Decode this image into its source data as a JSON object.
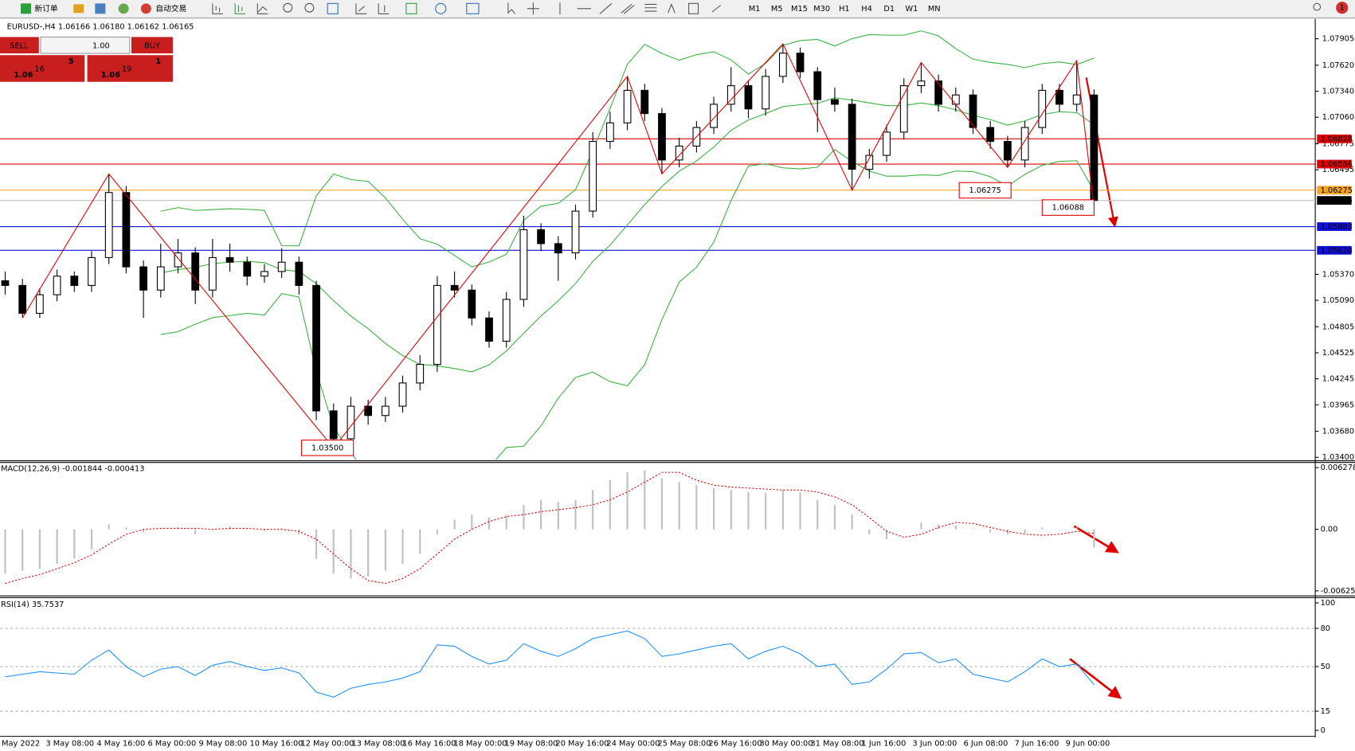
{
  "toolbar": {
    "new_order": "新订单",
    "auto_trading": "自动交易",
    "timeframes": [
      "M1",
      "M5",
      "M15",
      "M30",
      "H1",
      "H4",
      "D1",
      "W1",
      "MN"
    ],
    "notification_count": "1"
  },
  "header": "EURUSD-,H4  1.06166 1.06180 1.06162 1.06165",
  "trade_panel": {
    "sell": "SELL",
    "buy": "BUY",
    "lots": "1.00",
    "sell_price": {
      "prefix": "1.06",
      "big": "16",
      "small": "5"
    },
    "buy_price": {
      "prefix": "1.06",
      "big": "19",
      "small": "1"
    }
  },
  "price_axis": {
    "ylim": [
      1.034,
      1.07905
    ],
    "ticks": [
      {
        "value": 1.07905,
        "label": "1.07905"
      },
      {
        "value": 1.0762,
        "label": "1.07620"
      },
      {
        "value": 1.0734,
        "label": "1.07340"
      },
      {
        "value": 1.0706,
        "label": "1.07060"
      },
      {
        "value": 1.06775,
        "label": "1.06775"
      },
      {
        "value": 1.06495,
        "label": "1.06495"
      },
      {
        "value": 1.0537,
        "label": "1.05370"
      },
      {
        "value": 1.0509,
        "label": "1.05090"
      },
      {
        "value": 1.04805,
        "label": "1.04805"
      },
      {
        "value": 1.04525,
        "label": "1.04525"
      },
      {
        "value": 1.04245,
        "label": "1.04245"
      },
      {
        "value": 1.03965,
        "label": "1.03965"
      },
      {
        "value": 1.0368,
        "label": "1.03680"
      },
      {
        "value": 1.034,
        "label": "1.03400"
      }
    ]
  },
  "price_lines": [
    {
      "value": 1.06828,
      "label": "1.06828",
      "color": "#e00000"
    },
    {
      "value": 1.06556,
      "label": "1.06556",
      "color": "#e00000"
    },
    {
      "value": 1.06275,
      "label": "1.06275",
      "color": "#f5a623"
    },
    {
      "value": 1.05883,
      "label": "1.05883",
      "color": "#1010e0"
    },
    {
      "value": 1.05628,
      "label": "1.05628",
      "color": "#1010e0"
    },
    {
      "value": 1.06165,
      "label": "1.06165",
      "color": "#000000"
    }
  ],
  "candles": [
    [
      1.053,
      1.054,
      1.0515,
      1.0525
    ],
    [
      1.0525,
      1.0532,
      1.049,
      1.0495
    ],
    [
      1.0495,
      1.0522,
      1.049,
      1.0515
    ],
    [
      1.0515,
      1.0542,
      1.0508,
      1.0535
    ],
    [
      1.0535,
      1.054,
      1.0518,
      1.0525
    ],
    [
      1.0525,
      1.0562,
      1.0518,
      1.0555
    ],
    [
      1.0555,
      1.0645,
      1.0548,
      1.0625
    ],
    [
      1.0625,
      1.0632,
      1.0538,
      1.0545
    ],
    [
      1.0545,
      1.0552,
      1.049,
      1.052
    ],
    [
      1.052,
      1.057,
      1.0512,
      1.0545
    ],
    [
      1.0545,
      1.0575,
      1.0538,
      1.056
    ],
    [
      1.056,
      1.0566,
      1.0505,
      1.052
    ],
    [
      1.052,
      1.0575,
      1.0512,
      1.0555
    ],
    [
      1.0555,
      1.057,
      1.054,
      1.055
    ],
    [
      1.055,
      1.0556,
      1.0525,
      1.0535
    ],
    [
      1.0535,
      1.0548,
      1.0528,
      1.054
    ],
    [
      1.054,
      1.0565,
      1.0533,
      1.055
    ],
    [
      1.055,
      1.0556,
      1.0515,
      1.0525
    ],
    [
      1.0525,
      1.053,
      1.038,
      1.039
    ],
    [
      1.039,
      1.0398,
      1.035,
      1.036
    ],
    [
      1.036,
      1.0405,
      1.0352,
      1.0395
    ],
    [
      1.0395,
      1.0402,
      1.0375,
      1.0385
    ],
    [
      1.0385,
      1.0405,
      1.0378,
      1.0395
    ],
    [
      1.0395,
      1.0428,
      1.0388,
      1.042
    ],
    [
      1.042,
      1.045,
      1.0412,
      1.044
    ],
    [
      1.044,
      1.0535,
      1.0432,
      1.0525
    ],
    [
      1.0525,
      1.054,
      1.0512,
      1.052
    ],
    [
      1.052,
      1.0526,
      1.0482,
      1.049
    ],
    [
      1.049,
      1.0497,
      1.0458,
      1.0465
    ],
    [
      1.0465,
      1.0518,
      1.0458,
      1.051
    ],
    [
      1.051,
      1.06,
      1.0502,
      1.0585
    ],
    [
      1.0585,
      1.0592,
      1.0562,
      1.057
    ],
    [
      1.057,
      1.0578,
      1.053,
      1.056
    ],
    [
      1.056,
      1.0612,
      1.0553,
      1.0605
    ],
    [
      1.0605,
      1.069,
      1.0598,
      1.068
    ],
    [
      1.068,
      1.0712,
      1.0672,
      1.07
    ],
    [
      1.07,
      1.075,
      1.0692,
      1.0735
    ],
    [
      1.0735,
      1.0742,
      1.0702,
      1.071
    ],
    [
      1.071,
      1.0716,
      1.0645,
      1.066
    ],
    [
      1.066,
      1.0684,
      1.0652,
      1.0675
    ],
    [
      1.0675,
      1.0702,
      1.0668,
      1.0695
    ],
    [
      1.0695,
      1.0728,
      1.0688,
      1.072
    ],
    [
      1.072,
      1.076,
      1.0712,
      1.074
    ],
    [
      1.074,
      1.0746,
      1.0705,
      1.0715
    ],
    [
      1.0715,
      1.0758,
      1.0708,
      1.075
    ],
    [
      1.075,
      1.0785,
      1.0743,
      1.0775
    ],
    [
      1.0775,
      1.0781,
      1.0748,
      1.0755
    ],
    [
      1.0755,
      1.076,
      1.069,
      1.0725
    ],
    [
      1.0725,
      1.0738,
      1.0712,
      1.072
    ],
    [
      1.072,
      1.0726,
      1.06275,
      1.065
    ],
    [
      1.065,
      1.0672,
      1.064,
      1.0665
    ],
    [
      1.0665,
      1.0698,
      1.0658,
      1.069
    ],
    [
      1.069,
      1.0748,
      1.0682,
      1.074
    ],
    [
      1.074,
      1.0765,
      1.0732,
      1.0745
    ],
    [
      1.0745,
      1.0752,
      1.0712,
      1.072
    ],
    [
      1.072,
      1.0738,
      1.0712,
      1.073
    ],
    [
      1.073,
      1.0736,
      1.0688,
      1.0695
    ],
    [
      1.0695,
      1.0702,
      1.0672,
      1.068
    ],
    [
      1.068,
      1.0686,
      1.0652,
      1.066
    ],
    [
      1.066,
      1.0702,
      1.0652,
      1.0695
    ],
    [
      1.0695,
      1.0742,
      1.0688,
      1.0735
    ],
    [
      1.0735,
      1.0742,
      1.0712,
      1.072
    ],
    [
      1.072,
      1.0767,
      1.0712,
      1.073
    ],
    [
      1.073,
      1.0736,
      1.06088,
      1.06165
    ]
  ],
  "zigzag": [
    [
      1,
      1.049
    ],
    [
      6,
      1.0645
    ],
    [
      19,
      1.035
    ],
    [
      36,
      1.075
    ],
    [
      38,
      1.0645
    ],
    [
      45,
      1.0785
    ],
    [
      49,
      1.06275
    ],
    [
      53,
      1.0765
    ],
    [
      58,
      1.0652
    ],
    [
      62,
      1.0767
    ],
    [
      63,
      1.06088
    ]
  ],
  "bollinger": {
    "period": 10,
    "deviations": 2,
    "color": "#3cb043"
  },
  "annotations": [
    "1.03500",
    "1.06275",
    "1.06088"
  ],
  "time_labels": [
    "May 2022",
    "3 May 08:00",
    "4 May 16:00",
    "6 May 00:00",
    "9 May 08:00",
    "10 May 16:00",
    "12 May 00:00",
    "13 May 08:00",
    "16 May 16:00",
    "18 May 00:00",
    "19 May 08:00",
    "20 May 16:00",
    "24 May 00:00",
    "25 May 08:00",
    "26 May 16:00",
    "30 May 00:00",
    "31 May 08:00",
    "1 Jun 16:00",
    "3 Jun 00:00",
    "6 Jun 08:00",
    "7 Jun 16:00",
    "9 Jun 00:00"
  ],
  "macd": {
    "label": "MACD(12,26,9) -0.001844 -0.000413",
    "ylim": [
      -0.006252,
      0.006278
    ],
    "ticks": [
      {
        "value": 0.006278,
        "label": "0.006278"
      },
      {
        "value": 0,
        "label": "0.00"
      },
      {
        "value": -0.006252,
        "label": "-0.006252"
      }
    ],
    "main": [
      -0.0045,
      -0.0042,
      -0.004,
      -0.0035,
      -0.003,
      -0.002,
      0.0005,
      0.0002,
      -0.0003,
      0,
      0.0002,
      -0.0005,
      0,
      0.0003,
      0,
      -0.0002,
      0.0001,
      -0.0005,
      -0.003,
      -0.0045,
      -0.005,
      -0.0048,
      -0.0042,
      -0.0035,
      -0.0025,
      -0.0005,
      0.001,
      0.0015,
      0.0012,
      0.0015,
      0.0025,
      0.003,
      0.0028,
      0.003,
      0.004,
      0.005,
      0.0058,
      0.006,
      0.0052,
      0.0048,
      0.0045,
      0.0042,
      0.004,
      0.0038,
      0.0037,
      0.004,
      0.0038,
      0.003,
      0.0025,
      0.0015,
      -0.0005,
      -0.001,
      0,
      0.0007,
      0.0005,
      0.0004,
      0,
      -0.0003,
      -0.0005,
      -0.0004,
      0.0002,
      0,
      0.0002,
      -0.001844
    ],
    "signal": [
      -0.0055,
      -0.005,
      -0.0046,
      -0.004,
      -0.0034,
      -0.0026,
      -0.0015,
      -0.0005,
      0,
      0.0001,
      0.0001,
      0.0001,
      0,
      0.0001,
      0.0001,
      0,
      0,
      -0.0002,
      -0.001,
      -0.0025,
      -0.004,
      -0.0052,
      -0.0055,
      -0.005,
      -0.004,
      -0.0025,
      -0.001,
      0,
      0.0008,
      0.0013,
      0.0015,
      0.0018,
      0.002,
      0.0022,
      0.0025,
      0.003,
      0.0038,
      0.0048,
      0.0058,
      0.0058,
      0.005,
      0.0045,
      0.0043,
      0.0042,
      0.0041,
      0.004,
      0.004,
      0.0038,
      0.0033,
      0.0025,
      0.0012,
      -0.0002,
      -0.0008,
      -0.0005,
      0.0002,
      0.0007,
      0.0006,
      0.0002,
      -0.0002,
      -0.0005,
      -0.0006,
      -0.0005,
      -0.0002,
      -0.000413
    ]
  },
  "rsi": {
    "label": "RSI(14) 35.7537",
    "ylim": [
      0,
      100
    ],
    "ticks": [
      100,
      80,
      50,
      15,
      0
    ],
    "levels": [
      80,
      50,
      15
    ],
    "color": "#1e90ff",
    "values": [
      42,
      44,
      46,
      45,
      44,
      55,
      63,
      50,
      42,
      48,
      50,
      43,
      51,
      54,
      50,
      47,
      49,
      45,
      30,
      26,
      33,
      36,
      38,
      41,
      46,
      67,
      66,
      58,
      52,
      55,
      68,
      62,
      58,
      64,
      72,
      75,
      78,
      72,
      58,
      60,
      63,
      66,
      68,
      56,
      62,
      66,
      60,
      50,
      52,
      36,
      38,
      48,
      60,
      61,
      53,
      56,
      44,
      41,
      38,
      46,
      56,
      50,
      52,
      35.7537
    ]
  }
}
